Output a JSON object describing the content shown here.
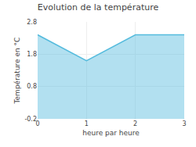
{
  "chart_data": {
    "type": "area",
    "title": "Evolution de la température",
    "xlabel": "heure par heure",
    "ylabel": "Température en °C",
    "x": [
      0,
      1,
      2,
      3
    ],
    "values": [
      2.4,
      1.6,
      2.4,
      2.4
    ],
    "color": "#55bbdd",
    "xlim": [
      0,
      3
    ],
    "ylim": [
      -0.2,
      2.8
    ],
    "xticks": [
      0,
      1,
      2,
      3
    ],
    "yticks": [
      -0.2,
      0.8,
      1.8,
      2.8
    ],
    "grid": true
  }
}
